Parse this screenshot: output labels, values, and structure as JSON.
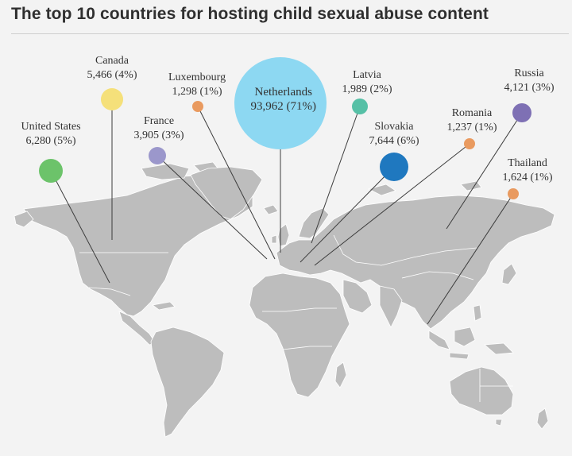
{
  "title": "The top 10 countries for hosting child sexual abuse content",
  "colors": {
    "land": "#bdbdbd",
    "border": "#ffffff",
    "leader_line": "#3c3c3c",
    "background": "#f3f3f3"
  },
  "countries": [
    {
      "name": "United States",
      "value": "6,280 (5%)",
      "count": 6280,
      "percent": 5,
      "color": "#6cc36a"
    },
    {
      "name": "Canada",
      "value": "5,466 (4%)",
      "count": 5466,
      "percent": 4,
      "color": "#f5e07a"
    },
    {
      "name": "France",
      "value": "3,905 (3%)",
      "count": 3905,
      "percent": 3,
      "color": "#9b97cb"
    },
    {
      "name": "Luxembourg",
      "value": "1,298 (1%)",
      "count": 1298,
      "percent": 1,
      "color": "#e99a5f"
    },
    {
      "name": "Netherlands",
      "value": "93,962 (71%)",
      "count": 93962,
      "percent": 71,
      "color": "#8dd8f2"
    },
    {
      "name": "Latvia",
      "value": "1,989 (2%)",
      "count": 1989,
      "percent": 2,
      "color": "#56c0a6"
    },
    {
      "name": "Slovakia",
      "value": "7,644 (6%)",
      "count": 7644,
      "percent": 6,
      "color": "#1f78bf"
    },
    {
      "name": "Romania",
      "value": "1,237 (1%)",
      "count": 1237,
      "percent": 1,
      "color": "#e99a5f"
    },
    {
      "name": "Russia",
      "value": "4,121 (3%)",
      "count": 4121,
      "percent": 3,
      "color": "#7e70b4"
    },
    {
      "name": "Thailand",
      "value": "1,624 (1%)",
      "count": 1624,
      "percent": 1,
      "color": "#e99a5f"
    }
  ]
}
